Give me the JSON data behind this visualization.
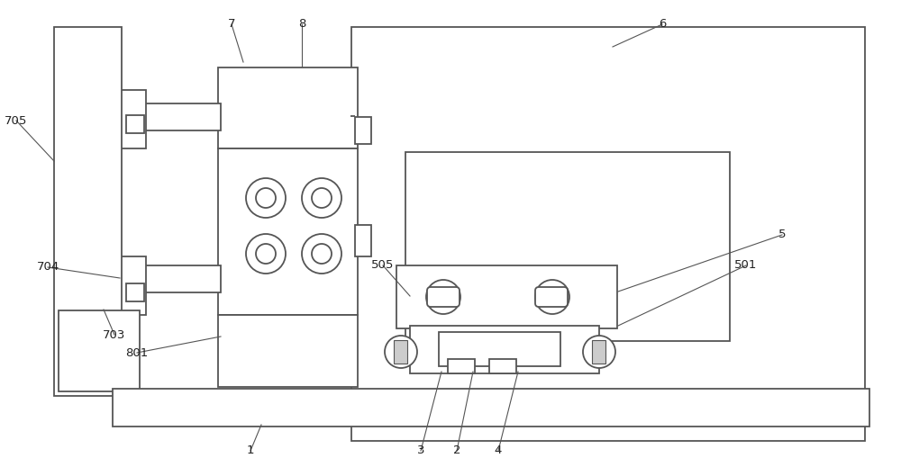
{
  "bg_color": "#ffffff",
  "lc": "#555555",
  "lw": 1.3,
  "fig_w": 10.0,
  "fig_h": 5.19,
  "dpi": 100
}
